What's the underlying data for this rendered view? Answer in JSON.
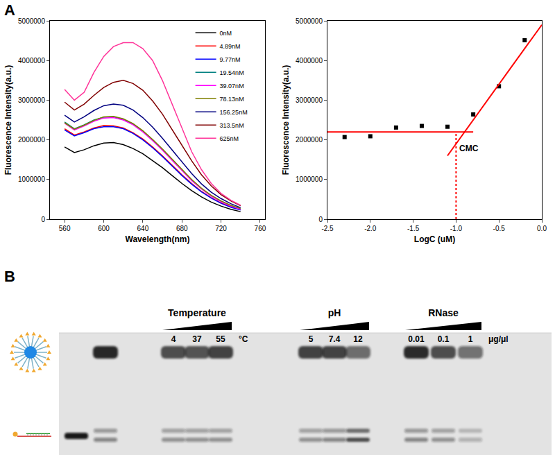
{
  "panel_labels": [
    "A",
    "B"
  ],
  "chart_data": [
    {
      "type": "line",
      "x_label": "Wavelength(nm)",
      "y_label": "Fluorescence Intensity(a.u.)",
      "x": [
        560,
        570,
        580,
        590,
        600,
        610,
        620,
        630,
        640,
        650,
        660,
        670,
        680,
        690,
        700,
        710,
        720,
        730,
        740
      ],
      "xlim": [
        545,
        765
      ],
      "xticks": [
        560,
        600,
        640,
        680,
        720,
        760
      ],
      "ylim": [
        0,
        5000000
      ],
      "yticks": [
        0,
        1000000,
        2000000,
        3000000,
        4000000,
        5000000
      ],
      "grid": false,
      "legend": "top right",
      "series": [
        {
          "name": "0nM",
          "color": "#000000",
          "values": [
            1820000,
            1680000,
            1750000,
            1850000,
            1920000,
            1930000,
            1880000,
            1780000,
            1650000,
            1480000,
            1300000,
            1100000,
            900000,
            720000,
            560000,
            430000,
            330000,
            250000,
            190000
          ]
        },
        {
          "name": "4.89nM",
          "color": "#ff0000",
          "values": [
            2280000,
            2120000,
            2200000,
            2300000,
            2360000,
            2350000,
            2300000,
            2180000,
            2020000,
            1820000,
            1600000,
            1360000,
            1120000,
            900000,
            700000,
            540000,
            410000,
            310000,
            240000
          ]
        },
        {
          "name": "9.77nM",
          "color": "#0000ff",
          "values": [
            2250000,
            2100000,
            2180000,
            2280000,
            2330000,
            2330000,
            2280000,
            2160000,
            2000000,
            1800000,
            1580000,
            1340000,
            1100000,
            880000,
            690000,
            530000,
            400000,
            300000,
            230000
          ]
        },
        {
          "name": "19.54nM",
          "color": "#008080",
          "values": [
            2450000,
            2280000,
            2380000,
            2500000,
            2570000,
            2580000,
            2520000,
            2400000,
            2220000,
            2000000,
            1760000,
            1500000,
            1240000,
            990000,
            770000,
            590000,
            450000,
            340000,
            260000
          ]
        },
        {
          "name": "39.07nM",
          "color": "#ff00ff",
          "values": [
            2420000,
            2250000,
            2350000,
            2470000,
            2550000,
            2560000,
            2500000,
            2380000,
            2200000,
            1980000,
            1740000,
            1480000,
            1220000,
            970000,
            760000,
            580000,
            440000,
            330000,
            250000
          ]
        },
        {
          "name": "78.13nM",
          "color": "#808000",
          "values": [
            2430000,
            2270000,
            2370000,
            2490000,
            2580000,
            2590000,
            2530000,
            2410000,
            2230000,
            2010000,
            1770000,
            1510000,
            1250000,
            1000000,
            780000,
            600000,
            460000,
            350000,
            270000
          ]
        },
        {
          "name": "156.25nM",
          "color": "#000080",
          "values": [
            2620000,
            2450000,
            2580000,
            2740000,
            2860000,
            2900000,
            2870000,
            2750000,
            2560000,
            2320000,
            2040000,
            1740000,
            1440000,
            1150000,
            890000,
            680000,
            520000,
            390000,
            290000
          ]
        },
        {
          "name": "313.5nM",
          "color": "#800000",
          "values": [
            2950000,
            2750000,
            2900000,
            3120000,
            3320000,
            3450000,
            3500000,
            3420000,
            3250000,
            2980000,
            2650000,
            2260000,
            1860000,
            1470000,
            1120000,
            840000,
            620000,
            460000,
            340000
          ]
        },
        {
          "name": "625nM",
          "color": "#ff3399",
          "values": [
            3270000,
            3000000,
            3200000,
            3700000,
            4100000,
            4350000,
            4450000,
            4450000,
            4300000,
            4000000,
            3500000,
            2900000,
            2300000,
            1700000,
            1250000,
            900000,
            650000,
            480000,
            350000
          ]
        }
      ]
    },
    {
      "type": "scatter",
      "x_label": "LogC (uM)",
      "y_label": "Fluorescence Intensity(a.u.)",
      "x": [
        -2.3,
        -2.0,
        -1.7,
        -1.4,
        -1.1,
        -0.8,
        -0.5,
        -0.2
      ],
      "values": [
        2070000,
        2090000,
        2310000,
        2350000,
        2330000,
        2640000,
        3350000,
        4510000
      ],
      "color": "#000000",
      "marker": "square",
      "xlim": [
        -2.5,
        0
      ],
      "xticks": [
        -2.5,
        {
          "value": -2,
          "label": "-2.0"
        },
        -1.5,
        {
          "value": -1,
          "label": "-1.0"
        },
        -0.5,
        {
          "value": 0,
          "label": "0.0"
        }
      ],
      "ylim": [
        0,
        5000000
      ],
      "yticks": [
        0,
        1000000,
        2000000,
        3000000,
        4000000,
        5000000
      ],
      "grid": false,
      "reference_lines": [
        {
          "x": [
            -2.5,
            -0.8
          ],
          "values": [
            2200000,
            2200000
          ],
          "color": "#ff0000",
          "line_style": "solid"
        },
        {
          "x": [
            -1.1,
            0
          ],
          "values": [
            1600000,
            4900000
          ],
          "color": "#ff0000",
          "line_style": "solid"
        },
        {
          "x": [
            -1.0,
            -1.0
          ],
          "values": [
            0,
            2200000
          ],
          "color": "#ff0000",
          "line_style": "dot"
        }
      ],
      "annotations": [
        {
          "text": "CMC",
          "x": -0.98,
          "y": 1780000
        }
      ]
    }
  ],
  "gel": {
    "lanes": [
      {
        "micelle": 0,
        "probe": 0.95,
        "doublet": false
      },
      {
        "micelle": 0.95,
        "probe": 0.45,
        "doublet": true
      },
      {
        "micelle": 0,
        "probe": 0,
        "doublet": false
      }
    ],
    "groups": [
      {
        "title": "Temperature",
        "unit": "°C",
        "lanes": [
          {
            "value": 4,
            "micelle": 0.75,
            "probe": 0.4,
            "doublet": true
          },
          {
            "value": 37,
            "micelle": 0.72,
            "probe": 0.4,
            "doublet": true
          },
          {
            "value": 55,
            "micelle": 0.8,
            "probe": 0.4,
            "doublet": true
          }
        ]
      },
      {
        "title": "pH",
        "lanes": [
          {
            "value": 5,
            "micelle": 0.8,
            "probe": 0.4,
            "doublet": true
          },
          {
            "value": 7.4,
            "micelle": 0.8,
            "probe": 0.45,
            "doublet": true
          },
          {
            "value": 12,
            "micelle": 0.6,
            "probe": 0.75,
            "doublet": true
          }
        ]
      },
      {
        "title": "RNase",
        "unit": "μg/μl",
        "lanes": [
          {
            "value": 0.01,
            "micelle": 0.9,
            "probe": 0.45,
            "doublet": true
          },
          {
            "value": 0.1,
            "micelle": 0.75,
            "probe": 0.4,
            "doublet": true
          },
          {
            "value": 1,
            "micelle": 0.55,
            "probe": 0.25,
            "doublet": true
          }
        ]
      }
    ]
  }
}
